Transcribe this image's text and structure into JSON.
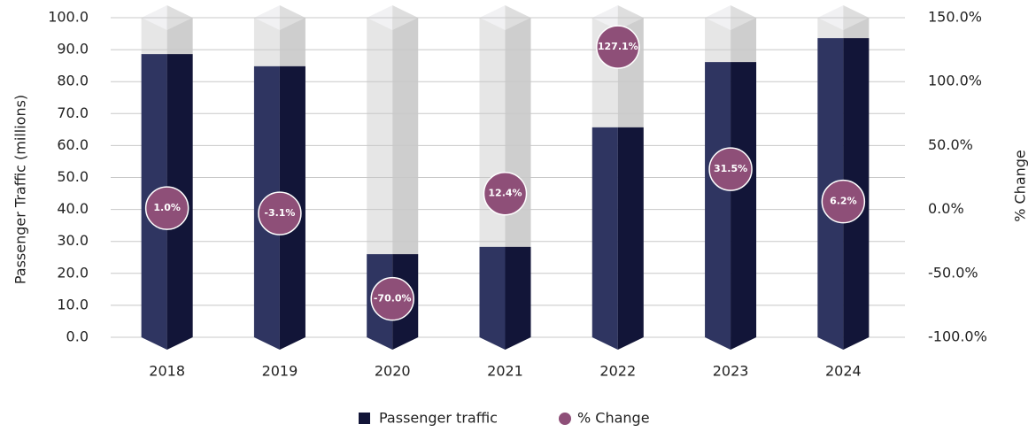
{
  "chart_data": {
    "type": "bar-line",
    "categories": [
      "2018",
      "2019",
      "2020",
      "2021",
      "2022",
      "2023",
      "2024"
    ],
    "y_label": "Passenger Traffic (millions)",
    "y2_label": "% Change",
    "series": [
      {
        "name": "Passenger traffic",
        "type": "bar",
        "color": "#2f3561",
        "values": [
          88.6,
          84.8,
          26.0,
          28.3,
          65.7,
          86.1,
          93.6
        ]
      },
      {
        "name": "% Change",
        "type": "scatter",
        "axis": "y2",
        "color": "#8e4f78",
        "values": [
          1.0,
          -3.1,
          -70.0,
          12.4,
          127.1,
          31.5,
          6.2
        ],
        "value_labels": [
          "1.0%",
          "-3.1%",
          "-70.0%",
          "12.4%",
          "127.1%",
          "31.5%",
          "6.2%"
        ]
      }
    ],
    "ylim": [
      0,
      100
    ],
    "yticks": [
      {
        "value": 0,
        "label": "0.0"
      },
      {
        "value": 10,
        "label": "10.0"
      },
      {
        "value": 20,
        "label": "20.0"
      },
      {
        "value": 30,
        "label": "30.0"
      },
      {
        "value": 40,
        "label": "40.0"
      },
      {
        "value": 50,
        "label": "50.0"
      },
      {
        "value": 60,
        "label": "60.0"
      },
      {
        "value": 70,
        "label": "70.0"
      },
      {
        "value": 80,
        "label": "80.0"
      },
      {
        "value": 90,
        "label": "90.0"
      },
      {
        "value": 100,
        "label": "100.0"
      }
    ],
    "y2lim": [
      -100,
      150
    ],
    "y2ticks": [
      {
        "value": -100,
        "label": "-100.0%"
      },
      {
        "value": -50,
        "label": "-50.0%"
      },
      {
        "value": 0,
        "label": "0.0%"
      },
      {
        "value": 50,
        "label": "50.0%"
      },
      {
        "value": 100,
        "label": "100.0%"
      },
      {
        "value": 150,
        "label": "150.0%"
      }
    ],
    "grid": true,
    "legend": "bottom"
  }
}
